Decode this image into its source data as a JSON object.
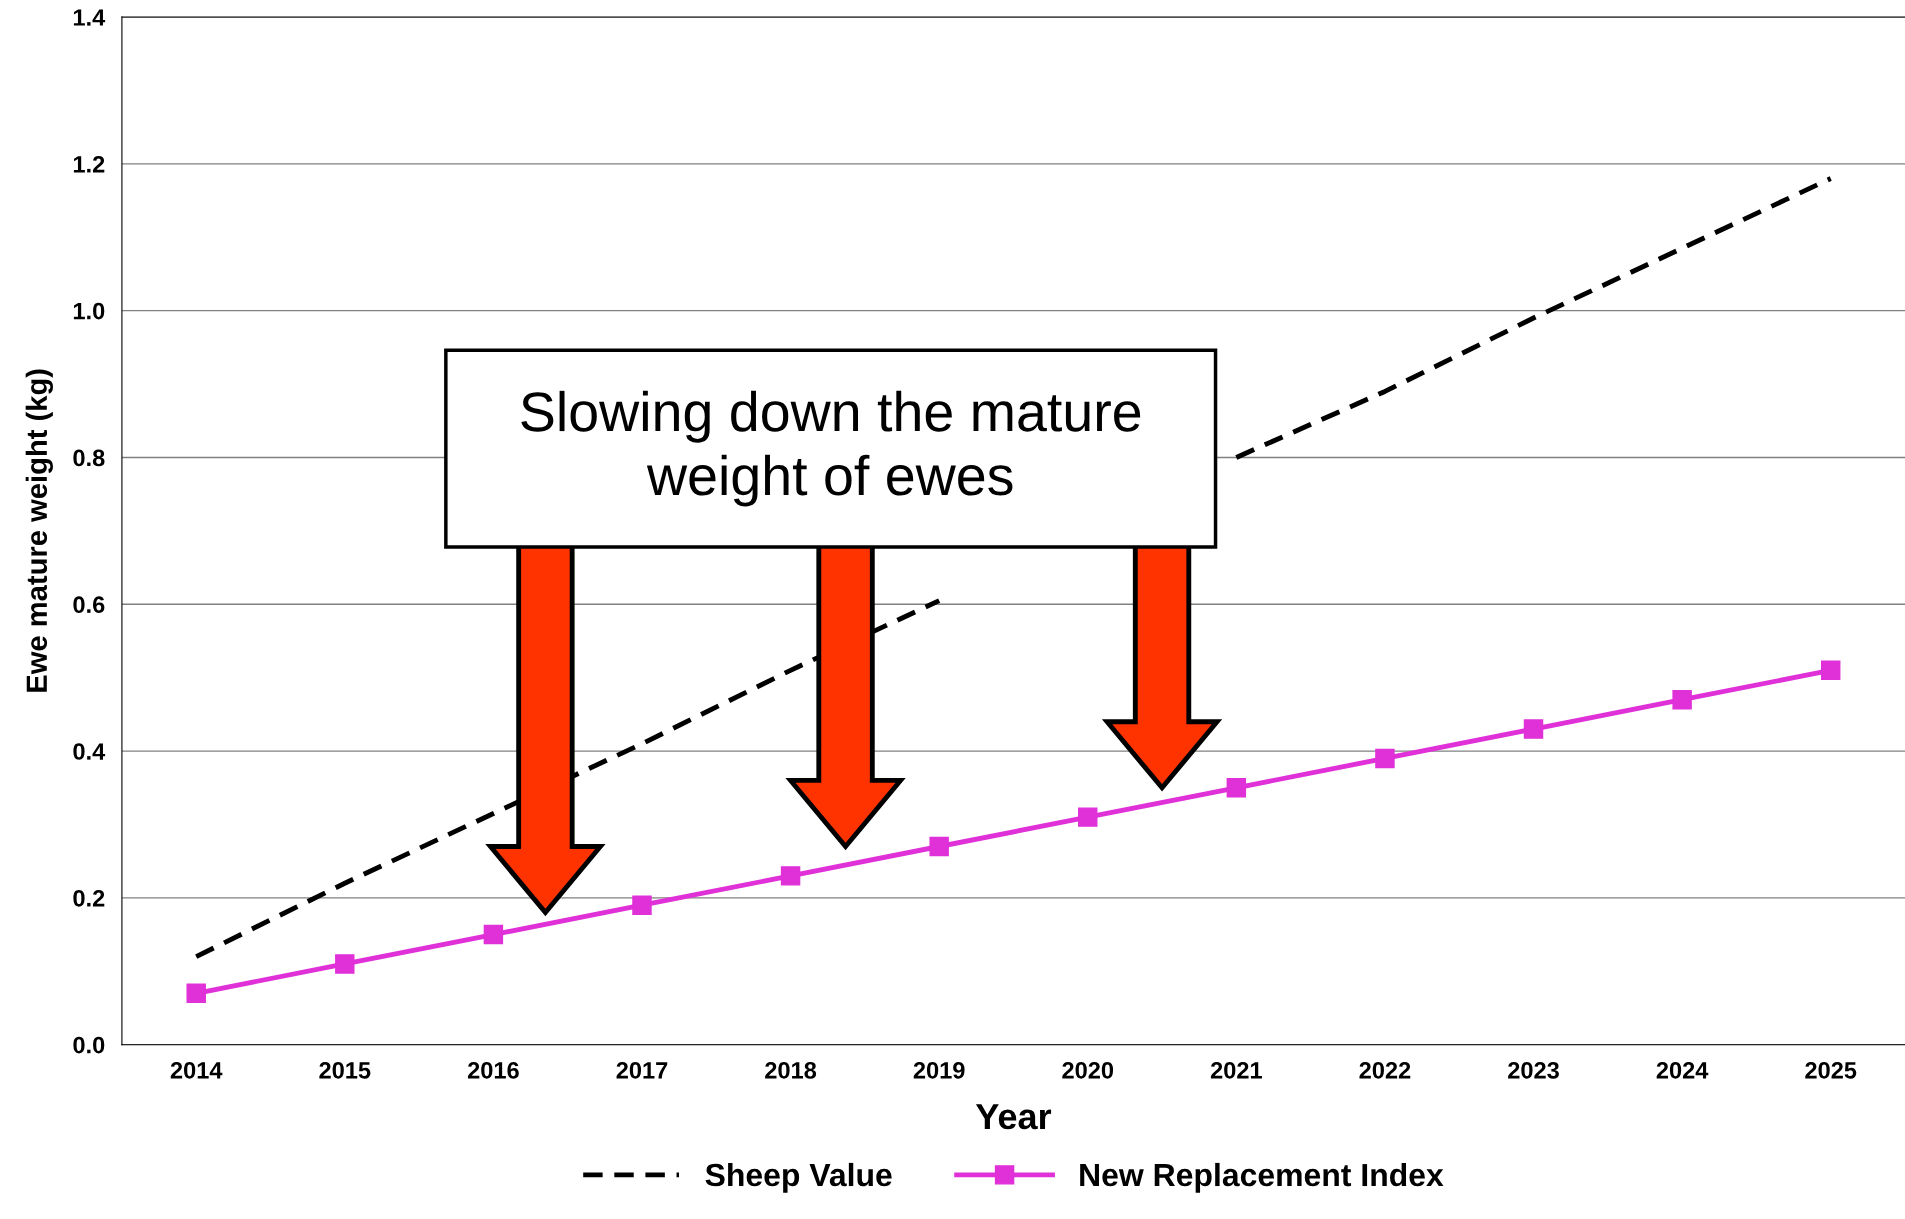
{
  "chart_data": {
    "type": "line",
    "xlabel": "Year",
    "ylabel": "Ewe mature weight (kg)",
    "categories": [
      "2014",
      "2015",
      "2016",
      "2017",
      "2018",
      "2019",
      "2020",
      "2021",
      "2022",
      "2023",
      "2024",
      "2025"
    ],
    "series": [
      {
        "name": "Sheep Value",
        "color": "#000000",
        "line_style": "dashed",
        "marker": "none",
        "values": [
          0.12,
          0.22,
          0.315,
          0.41,
          0.51,
          0.605,
          null,
          0.8,
          0.89,
          0.99,
          1.085,
          1.18
        ]
      },
      {
        "name": "New Replacement Index",
        "color": "#e030d8",
        "line_style": "solid",
        "marker": "square",
        "values": [
          0.07,
          0.11,
          0.15,
          0.19,
          0.23,
          0.27,
          0.31,
          0.35,
          0.39,
          0.43,
          0.47,
          0.51
        ]
      }
    ],
    "ylim": [
      0,
      1.4
    ],
    "yticks": [
      {
        "value": 0,
        "label": "0.0"
      },
      0.2,
      0.4,
      0.6,
      0.8,
      {
        "value": 1,
        "label": "1.0"
      },
      1.2,
      1.4
    ],
    "grid": "y",
    "legend": "bottom",
    "annotations": [
      "Slowing down the mature weight of ewes"
    ]
  }
}
